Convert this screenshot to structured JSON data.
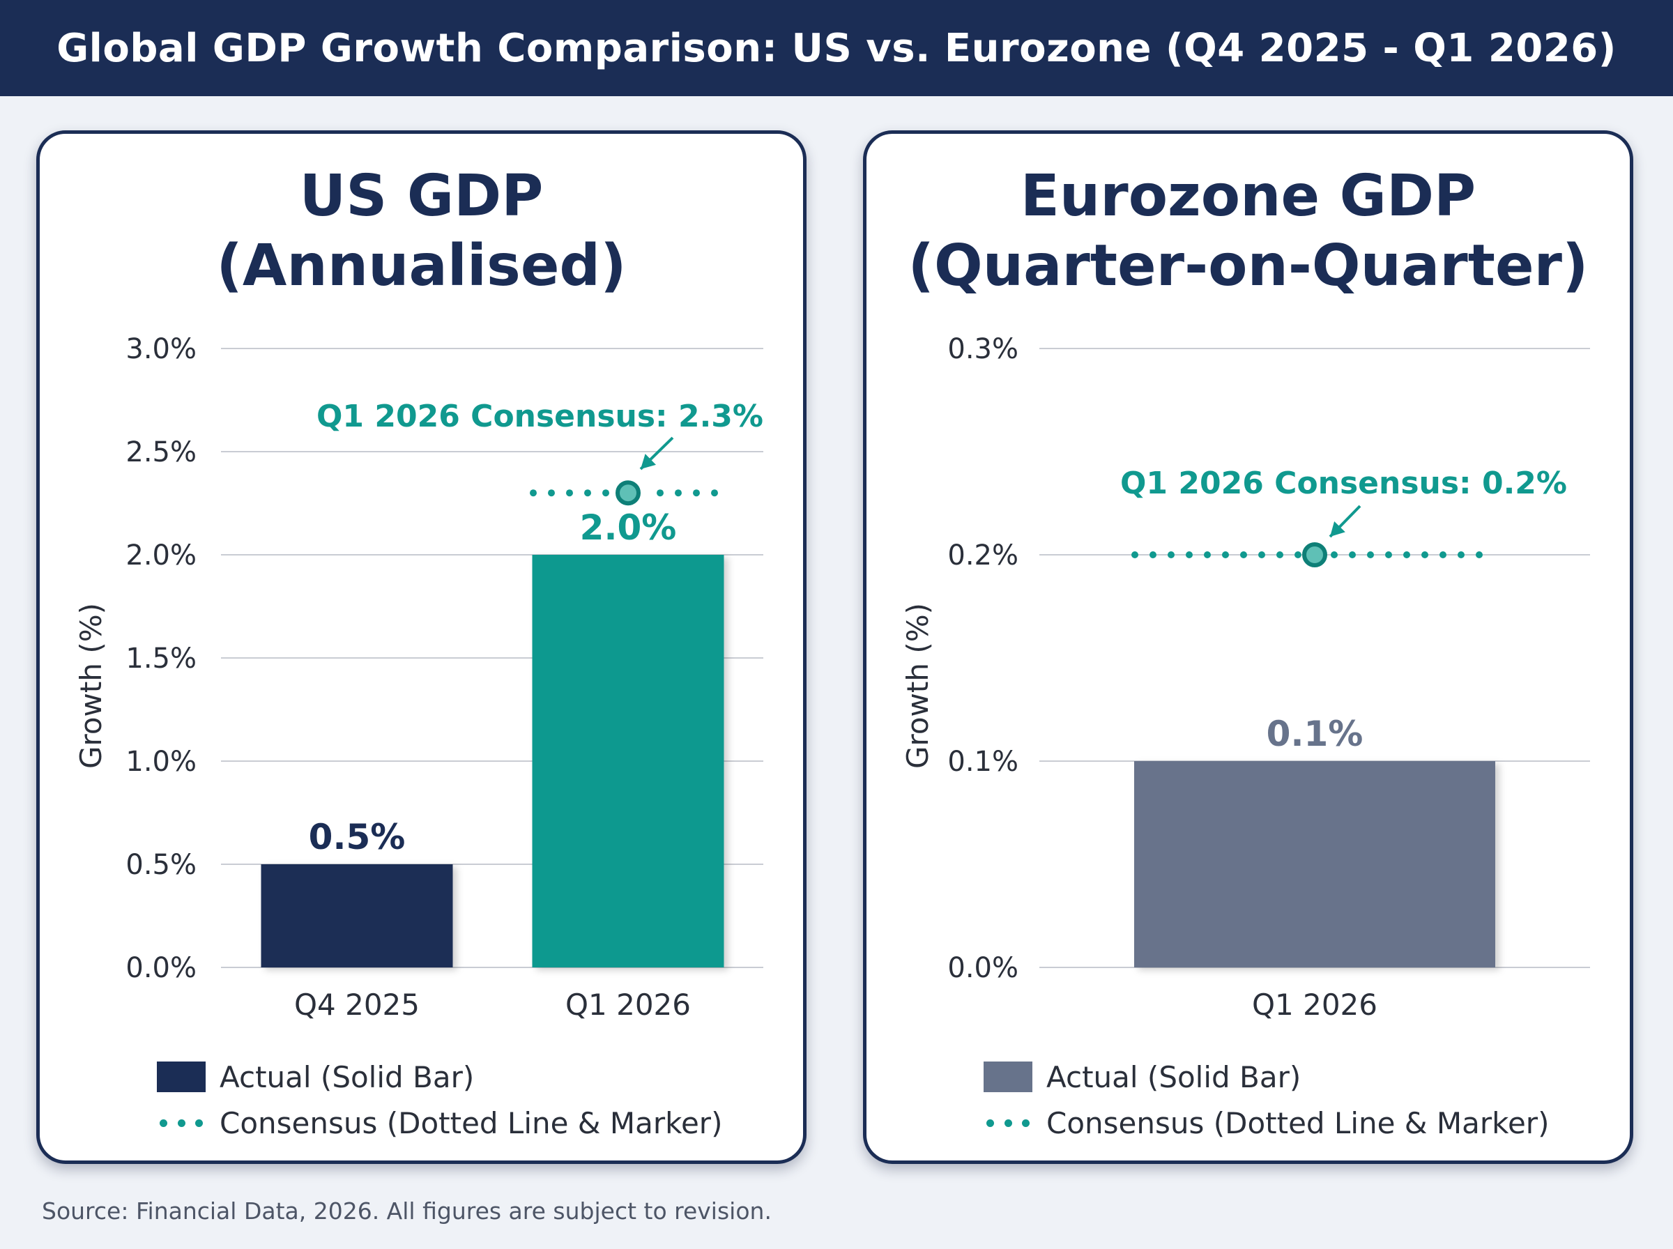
{
  "title": "Global GDP Growth Comparison: US vs. Eurozone (Q4 2025 - Q1 2026)",
  "source": "Source: Financial Data, 2026. All figures are subject to revision.",
  "colors": {
    "navy": "#1b2d55",
    "teal": "#10998f",
    "slate": "#67738b",
    "grid": "#c9ccd3"
  },
  "chart_data": [
    {
      "type": "bar",
      "title_lines": [
        "US GDP",
        "(Annualised)"
      ],
      "ylabel": "Growth (%)",
      "ylim": [
        0,
        3.0
      ],
      "yticks": [
        "0.0%",
        "0.5%",
        "1.0%",
        "1.5%",
        "2.0%",
        "2.5%",
        "3.0%"
      ],
      "ytick_values": [
        0,
        0.5,
        1.0,
        1.5,
        2.0,
        2.5,
        3.0
      ],
      "grid": true,
      "categories": [
        "Q4 2025",
        "Q1 2026"
      ],
      "values": [
        0.5,
        2.0
      ],
      "value_labels": [
        "0.5%",
        "2.0%"
      ],
      "bar_colors": [
        "#1b2d55",
        "#10998f"
      ],
      "label_colors": [
        "#1b2d55",
        "#10998f"
      ],
      "consensus": {
        "category": "Q1 2026",
        "value": 2.3,
        "annotation": "Q1 2026 Consensus: 2.3%"
      },
      "legend": [
        {
          "label": "Actual (Solid Bar)",
          "color": "#1b2d55",
          "kind": "bar"
        },
        {
          "label": "Consensus (Dotted Line & Marker)",
          "color": "#10998f",
          "kind": "dots"
        }
      ]
    },
    {
      "type": "bar",
      "title_lines": [
        "Eurozone GDP",
        "(Quarter-on-Quarter)"
      ],
      "ylabel": "Growth (%)",
      "ylim": [
        0,
        0.3
      ],
      "yticks": [
        "0.0%",
        "0.1%",
        "0.2%",
        "0.3%"
      ],
      "ytick_values": [
        0,
        0.1,
        0.2,
        0.3
      ],
      "grid": true,
      "categories": [
        "Q1 2026"
      ],
      "values": [
        0.1
      ],
      "value_labels": [
        "0.1%"
      ],
      "bar_colors": [
        "#67738b"
      ],
      "label_colors": [
        "#67738b"
      ],
      "consensus": {
        "category": "Q1 2026",
        "value": 0.2,
        "annotation": "Q1 2026 Consensus: 0.2%"
      },
      "legend": [
        {
          "label": "Actual (Solid Bar)",
          "color": "#67738b",
          "kind": "bar"
        },
        {
          "label": "Consensus (Dotted Line & Marker)",
          "color": "#10998f",
          "kind": "dots"
        }
      ]
    }
  ]
}
